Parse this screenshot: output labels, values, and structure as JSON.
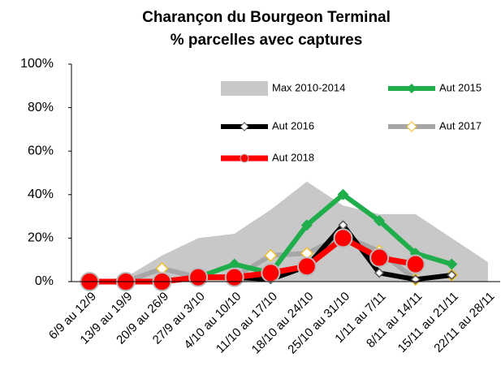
{
  "chart_data": {
    "type": "line",
    "title": "Charançon du Bourgeon Terminal",
    "subtitle": "% parcelles avec captures",
    "categories": [
      "6/9 au 12/9",
      "13/9 au 19/9",
      "20/9 au 26/9",
      "27/9 au 3/10",
      "4/10 au 10/10",
      "11/10 au 17/10",
      "18/10 au 24/10",
      "25/10 au 31/10",
      "1/11 au 7/11",
      "8/11 au 14/11",
      "15/11 au 21/11",
      "22/11 au 28/11"
    ],
    "ylim": [
      0,
      100
    ],
    "yticks": [
      {
        "value": 0,
        "label": "0%"
      },
      {
        "value": 20,
        "label": "20%"
      },
      {
        "value": 40,
        "label": "40%"
      },
      {
        "value": 60,
        "label": "60%"
      },
      {
        "value": 80,
        "label": "80%"
      },
      {
        "value": 100,
        "label": "100%"
      }
    ],
    "grid": false,
    "series": [
      {
        "name": "Max 2010-2014",
        "type": "area",
        "color": "#c8c8c8",
        "values": [
          0,
          2,
          12,
          20,
          22,
          33,
          46,
          35,
          31,
          31,
          20,
          9
        ]
      },
      {
        "name": "Aut 2015",
        "color": "#1fae4b",
        "values": [
          0,
          0,
          0,
          2,
          8,
          4,
          26,
          40,
          28,
          13,
          8,
          null
        ]
      },
      {
        "name": "Aut 2016",
        "color": "#000000",
        "values": [
          0,
          0,
          0,
          2,
          2,
          1,
          7,
          26,
          4,
          1,
          3,
          null
        ]
      },
      {
        "name": "Aut 2017",
        "color": "#a6a6a6",
        "values": [
          0,
          0,
          6,
          2,
          2,
          12,
          13,
          21,
          14,
          1,
          3,
          null
        ]
      },
      {
        "name": "Aut 2018",
        "color": "#ff0000",
        "values": [
          0,
          0,
          0,
          2,
          2,
          4,
          7,
          20,
          11,
          8,
          null,
          null
        ]
      }
    ]
  }
}
